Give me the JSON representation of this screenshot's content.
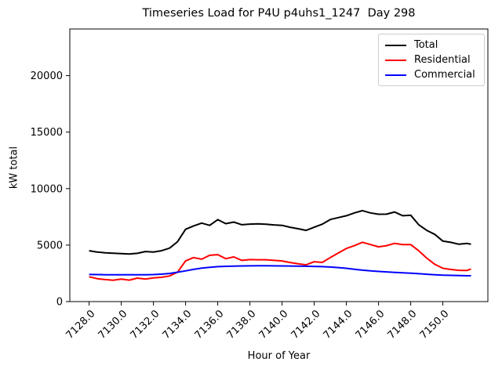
{
  "chart_data": {
    "type": "line",
    "title": "Timeseries Load for P4U p4uhs1_1247  Day 298",
    "xlabel": "Hour of Year",
    "ylabel": "kW total",
    "xlim": [
      7126.8,
      7152.8
    ],
    "ylim": [
      0,
      24130
    ],
    "grid": false,
    "legend_position": "upper right",
    "xticks": [
      7128,
      7130,
      7132,
      7134,
      7136,
      7138,
      7140,
      7142,
      7144,
      7146,
      7148,
      7150
    ],
    "xtick_labels": [
      "7128.0",
      "7130.0",
      "7132.0",
      "7134.0",
      "7136.0",
      "7138.0",
      "7140.0",
      "7142.0",
      "7144.0",
      "7146.0",
      "7148.0",
      "7150.0"
    ],
    "yticks": [
      0,
      5000,
      10000,
      15000,
      20000
    ],
    "ytick_labels": [
      "0",
      "5000",
      "10000",
      "15000",
      "20000"
    ],
    "x": [
      7128.0,
      7128.5,
      7129.0,
      7129.5,
      7130.0,
      7130.5,
      7131.0,
      7131.5,
      7132.0,
      7132.5,
      7133.0,
      7133.5,
      7134.0,
      7134.5,
      7135.0,
      7135.5,
      7136.0,
      7136.5,
      7137.0,
      7137.5,
      7138.0,
      7138.5,
      7139.0,
      7139.5,
      7140.0,
      7140.5,
      7141.0,
      7141.5,
      7142.0,
      7142.5,
      7143.0,
      7143.5,
      7144.0,
      7144.5,
      7145.0,
      7145.5,
      7146.0,
      7146.5,
      7147.0,
      7147.5,
      7148.0,
      7148.5,
      7149.0,
      7149.5,
      7150.0,
      7150.5,
      7151.0,
      7151.5,
      7151.75
    ],
    "series": [
      {
        "name": "Total",
        "color": "#000000",
        "values": [
          4500,
          4390,
          4320,
          4280,
          4250,
          4210,
          4270,
          4430,
          4390,
          4500,
          4730,
          5300,
          6400,
          6700,
          6950,
          6750,
          7250,
          6900,
          7040,
          6800,
          6860,
          6880,
          6850,
          6790,
          6750,
          6580,
          6450,
          6300,
          6580,
          6850,
          7270,
          7430,
          7600,
          7850,
          8050,
          7850,
          7730,
          7740,
          7930,
          7600,
          7650,
          6800,
          6300,
          5950,
          5350,
          5240,
          5075,
          5150,
          5075
        ]
      },
      {
        "name": "Residential",
        "color": "#ff0000",
        "values": [
          2200,
          2030,
          1950,
          1890,
          2000,
          1900,
          2080,
          2000,
          2100,
          2150,
          2270,
          2600,
          3600,
          3900,
          3750,
          4100,
          4150,
          3800,
          3950,
          3650,
          3720,
          3700,
          3700,
          3650,
          3600,
          3460,
          3350,
          3250,
          3530,
          3465,
          3900,
          4300,
          4700,
          4950,
          5250,
          5050,
          4850,
          4950,
          5150,
          5050,
          5050,
          4500,
          3850,
          3300,
          2950,
          2840,
          2770,
          2750,
          2885
        ]
      },
      {
        "name": "Commercial",
        "color": "#0000ff",
        "values": [
          2400,
          2390,
          2380,
          2375,
          2370,
          2370,
          2375,
          2380,
          2390,
          2430,
          2490,
          2600,
          2720,
          2850,
          2960,
          3030,
          3090,
          3120,
          3140,
          3155,
          3165,
          3170,
          3170,
          3165,
          3155,
          3145,
          3135,
          3125,
          3115,
          3090,
          3060,
          3010,
          2950,
          2860,
          2780,
          2720,
          2670,
          2625,
          2585,
          2550,
          2520,
          2470,
          2420,
          2380,
          2340,
          2320,
          2300,
          2290,
          2285
        ]
      }
    ]
  }
}
